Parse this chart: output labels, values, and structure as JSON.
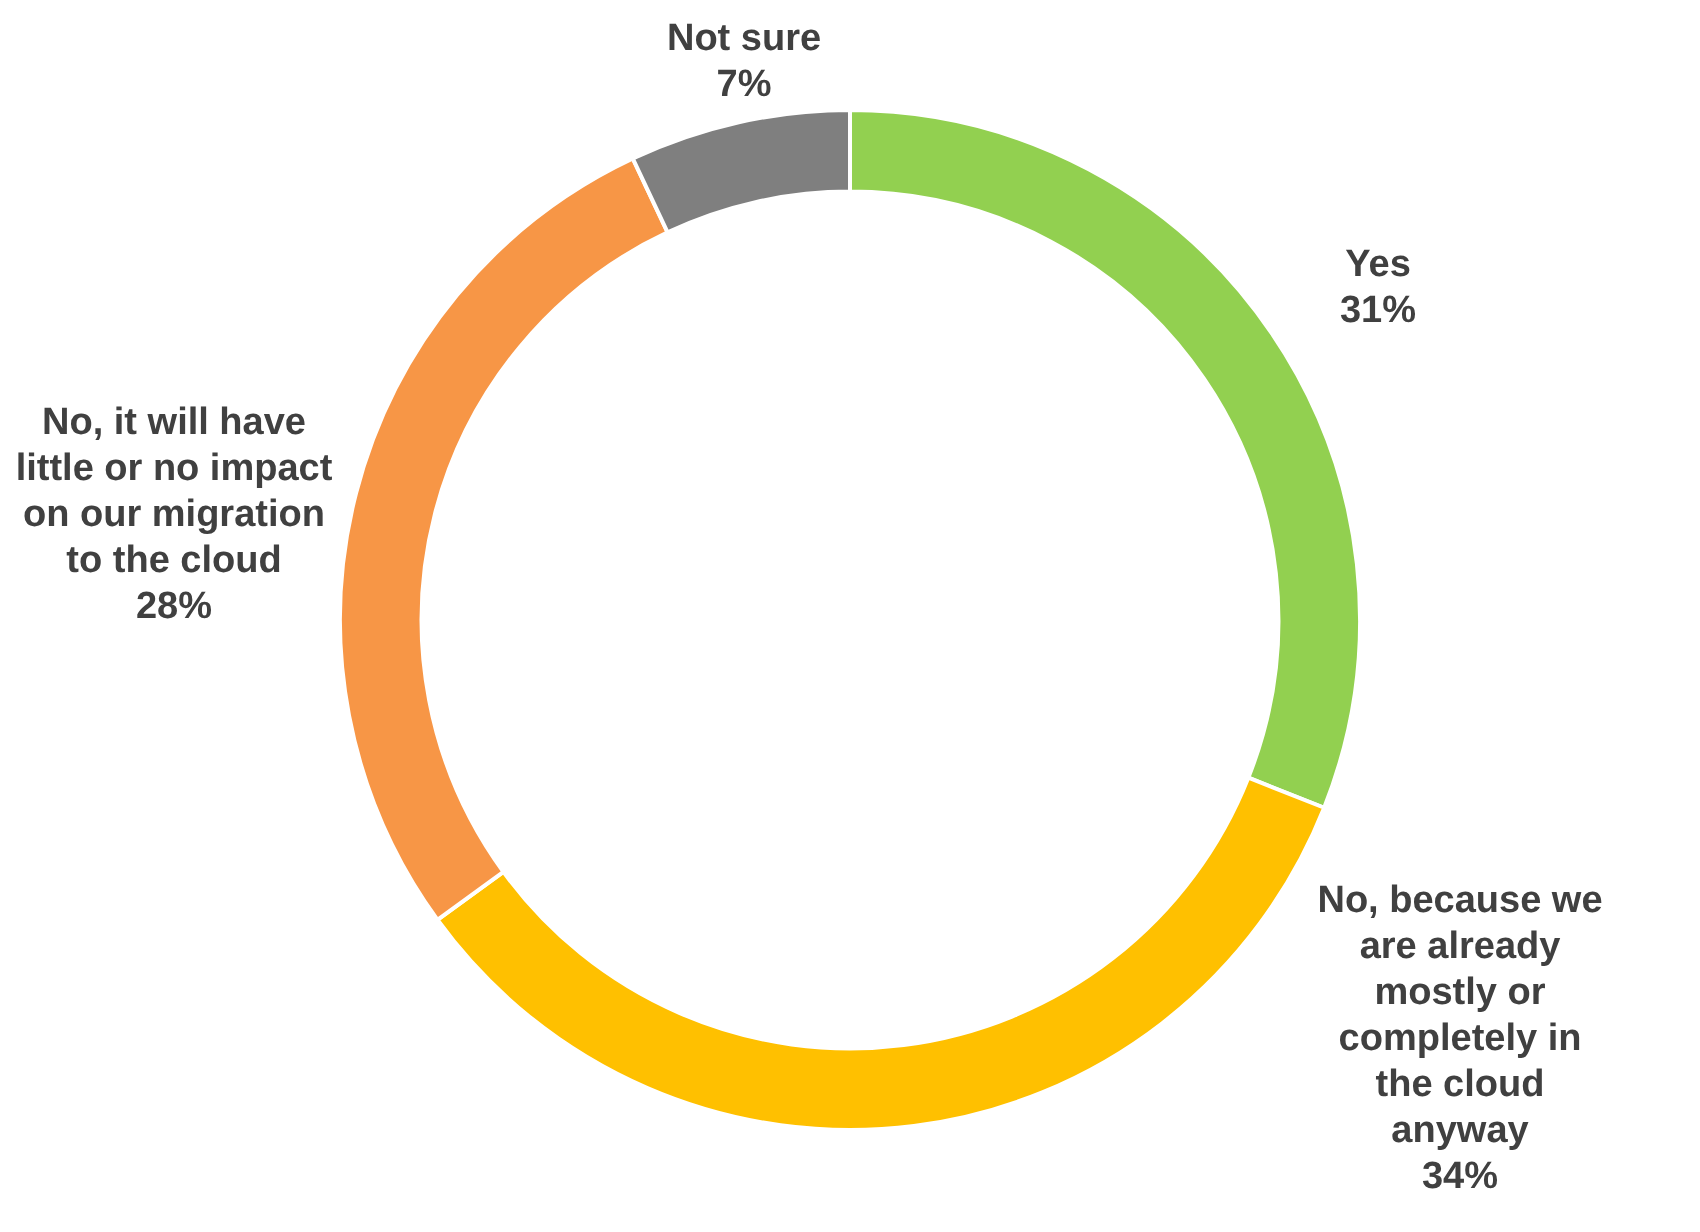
{
  "chart_data": {
    "type": "donut",
    "categories": [
      "Yes",
      "No, because we are already mostly or completely in the cloud anyway",
      "No, it will have little or no impact on our migration to the cloud",
      "Not sure"
    ],
    "values": [
      31,
      34,
      28,
      7
    ],
    "colors": [
      "#92d050",
      "#ffc000",
      "#f79646",
      "#7f7f7f"
    ],
    "value_labels": [
      "31%",
      "34%",
      "28%",
      "7%"
    ],
    "legend": false
  }
}
